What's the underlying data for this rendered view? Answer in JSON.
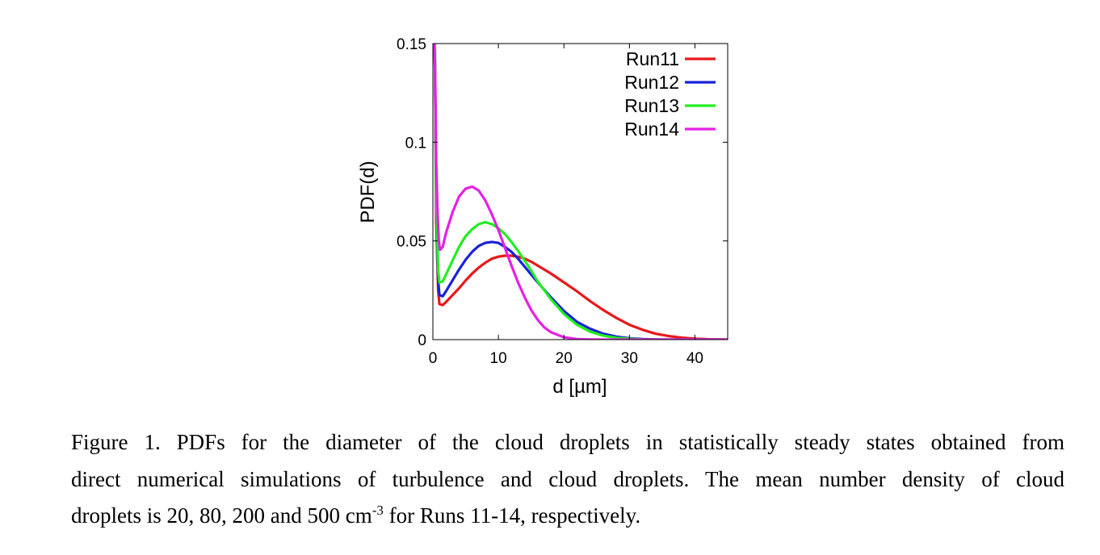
{
  "chart_data": {
    "type": "line",
    "title": "",
    "xlabel": "d [µm]",
    "ylabel": "PDF(d)",
    "xlim": [
      0,
      45
    ],
    "ylim": [
      0,
      0.15
    ],
    "xticks": [
      0,
      10,
      20,
      30,
      40
    ],
    "xtick_labels": [
      "0",
      "10",
      "20",
      "30",
      "40"
    ],
    "yticks": [
      0,
      0.05,
      0.1,
      0.15
    ],
    "ytick_labels": [
      "0",
      "0.05",
      "0.1",
      "0.15"
    ],
    "grid": false,
    "legend_position": "top-right",
    "series": [
      {
        "name": "Run11",
        "color": "#e8181b",
        "x": [
          0.3,
          0.5,
          0.8,
          1.0,
          1.5,
          2,
          3,
          4,
          5,
          6,
          7,
          8,
          9,
          10,
          11,
          12,
          13,
          14,
          15,
          16,
          17,
          18,
          20,
          22,
          24,
          26,
          28,
          30,
          32,
          34,
          36,
          38,
          40,
          42,
          45
        ],
        "y": [
          0.15,
          0.06,
          0.025,
          0.018,
          0.0175,
          0.019,
          0.0225,
          0.026,
          0.03,
          0.0335,
          0.0365,
          0.039,
          0.041,
          0.042,
          0.0425,
          0.0425,
          0.042,
          0.041,
          0.0395,
          0.0375,
          0.0355,
          0.0335,
          0.029,
          0.0245,
          0.0195,
          0.015,
          0.011,
          0.0075,
          0.005,
          0.003,
          0.0018,
          0.001,
          0.0005,
          0.0002,
          0.0
        ]
      },
      {
        "name": "Run12",
        "color": "#1a22d6",
        "x": [
          0.3,
          0.5,
          0.8,
          1.0,
          1.5,
          2,
          3,
          4,
          5,
          6,
          7,
          8,
          9,
          10,
          11,
          12,
          13,
          14,
          15,
          16,
          18,
          20,
          22,
          24,
          26,
          28,
          30,
          32,
          34,
          36,
          40,
          45
        ],
        "y": [
          0.15,
          0.07,
          0.03,
          0.0225,
          0.022,
          0.0245,
          0.03,
          0.0355,
          0.0405,
          0.0445,
          0.0475,
          0.049,
          0.0495,
          0.049,
          0.047,
          0.0445,
          0.041,
          0.037,
          0.033,
          0.029,
          0.0215,
          0.0145,
          0.009,
          0.0055,
          0.003,
          0.0015,
          0.0007,
          0.0003,
          0.0001,
          0.0,
          0.0,
          0.0
        ]
      },
      {
        "name": "Run13",
        "color": "#22ee22",
        "x": [
          0.3,
          0.5,
          0.8,
          1.0,
          1.5,
          2,
          3,
          4,
          5,
          6,
          7,
          8,
          9,
          10,
          11,
          12,
          13,
          14,
          15,
          16,
          18,
          20,
          22,
          24,
          26,
          28,
          30,
          32,
          35,
          40,
          45
        ],
        "y": [
          0.15,
          0.075,
          0.035,
          0.029,
          0.0295,
          0.033,
          0.04,
          0.047,
          0.0525,
          0.056,
          0.0585,
          0.0595,
          0.0585,
          0.0565,
          0.0535,
          0.0495,
          0.045,
          0.04,
          0.035,
          0.0295,
          0.0205,
          0.013,
          0.0075,
          0.004,
          0.002,
          0.0009,
          0.0004,
          0.0001,
          0.0,
          0.0,
          0.0
        ]
      },
      {
        "name": "Run14",
        "color": "#e520e5",
        "x": [
          0.2,
          0.35,
          0.5,
          0.7,
          0.9,
          1.1,
          1.5,
          2,
          3,
          4,
          5,
          6,
          7,
          8,
          9,
          10,
          11,
          12,
          13,
          14,
          15,
          16,
          17,
          18,
          20,
          22,
          24,
          26,
          28,
          30,
          35,
          40,
          45
        ],
        "y": [
          0.15,
          0.135,
          0.09,
          0.065,
          0.05,
          0.0455,
          0.047,
          0.054,
          0.0645,
          0.0725,
          0.0765,
          0.0775,
          0.0755,
          0.0705,
          0.0635,
          0.0555,
          0.0465,
          0.0375,
          0.029,
          0.0215,
          0.015,
          0.01,
          0.0062,
          0.0038,
          0.0012,
          0.0003,
          0.0001,
          0.0,
          0.0,
          0.0,
          0.0,
          0.0,
          0.0
        ]
      }
    ]
  },
  "caption": {
    "line1": "Figure 1. PDFs for the diameter of the cloud droplets in statistically steady states obtained from",
    "line2": "direct numerical simulations of turbulence and cloud droplets. The mean number density of cloud",
    "line3_before": "droplets is 20, 80, 200 and 500 cm",
    "line3_sup": "-3",
    "line3_after": " for Runs 11-14, respectively."
  }
}
